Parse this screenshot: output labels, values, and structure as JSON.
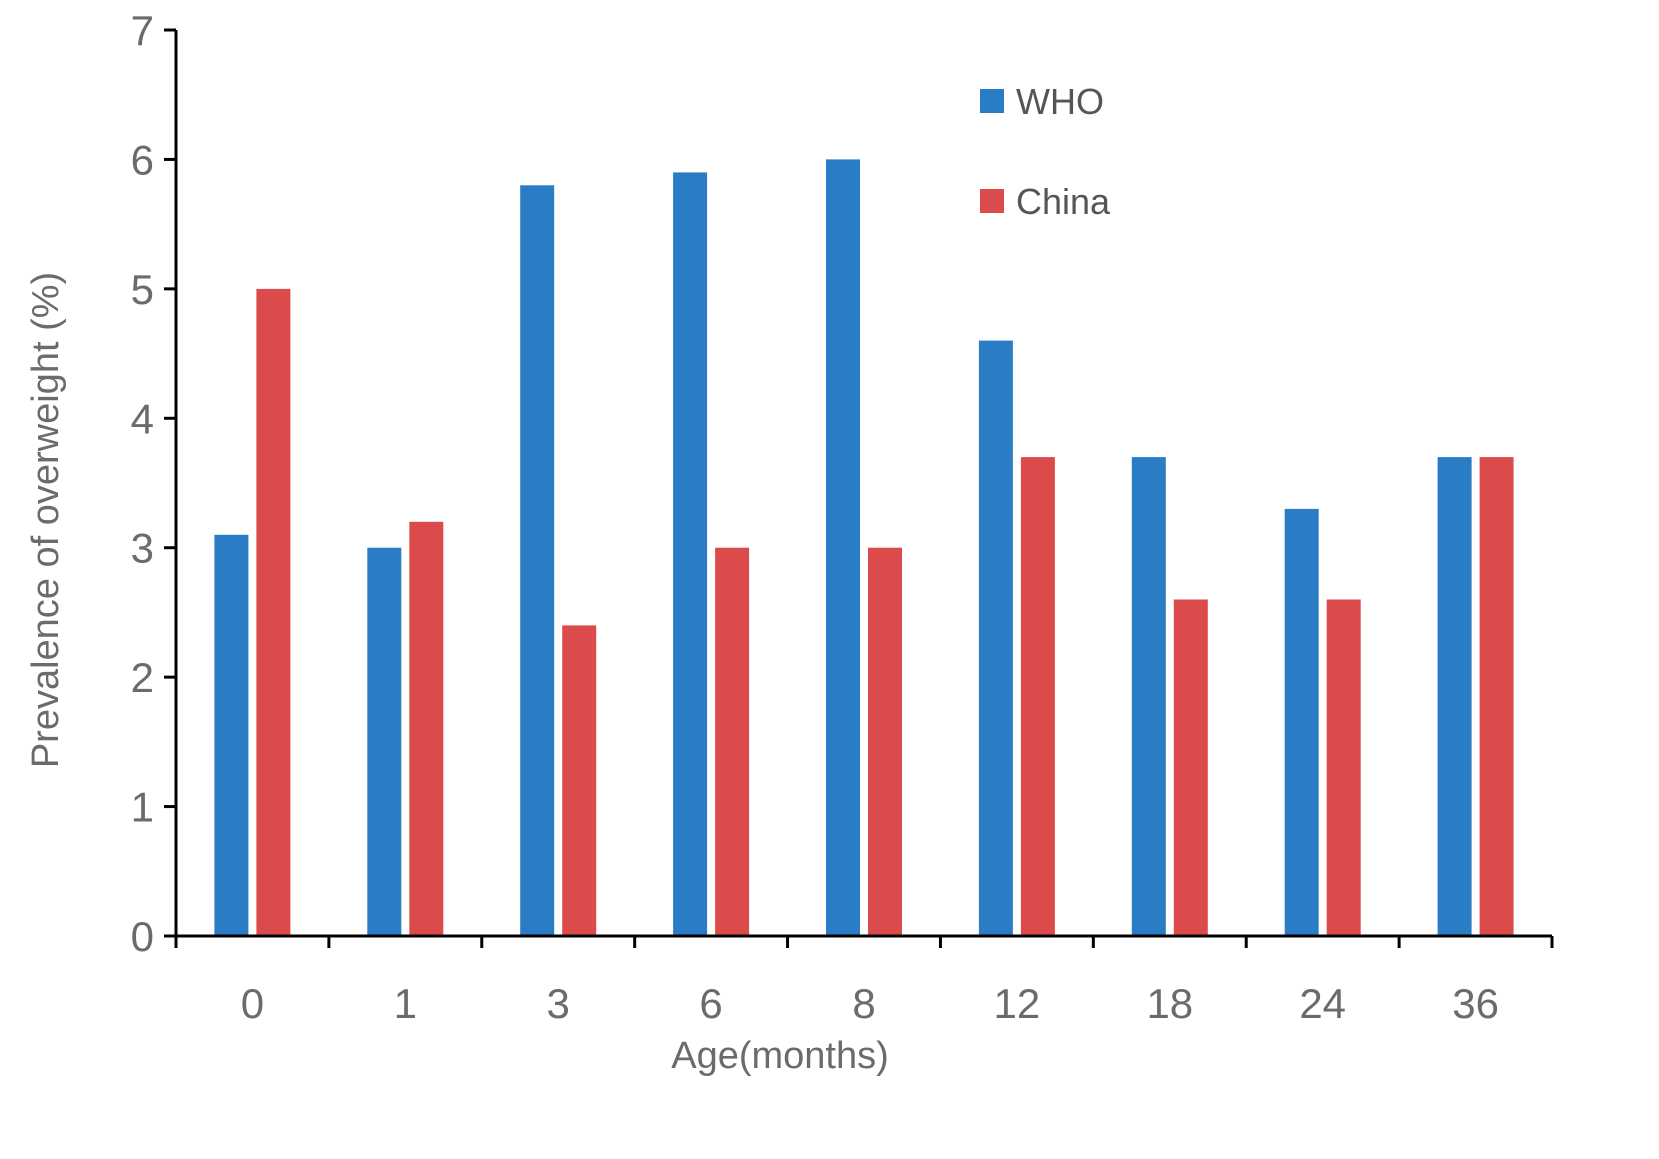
{
  "chart_data": {
    "type": "bar",
    "title": "",
    "xlabel": "Age(months)",
    "ylabel": "Prevalence of overweight (%)",
    "categories": [
      "0",
      "1",
      "3",
      "6",
      "8",
      "12",
      "18",
      "24",
      "36"
    ],
    "ylim": [
      0,
      7
    ],
    "yticks": [
      "0",
      "1",
      "2",
      "3",
      "4",
      "5",
      "6",
      "7"
    ],
    "grid": false,
    "legend_position": "top-right",
    "series": [
      {
        "name": "WHO",
        "color": "#2a7dc4",
        "values": [
          3.1,
          3.0,
          5.8,
          5.9,
          6.0,
          4.6,
          3.7,
          3.3,
          3.7
        ]
      },
      {
        "name": "China",
        "color": "#db4b4b",
        "values": [
          5.0,
          3.2,
          2.4,
          3.0,
          3.0,
          3.7,
          2.6,
          2.6,
          3.7
        ]
      }
    ]
  }
}
